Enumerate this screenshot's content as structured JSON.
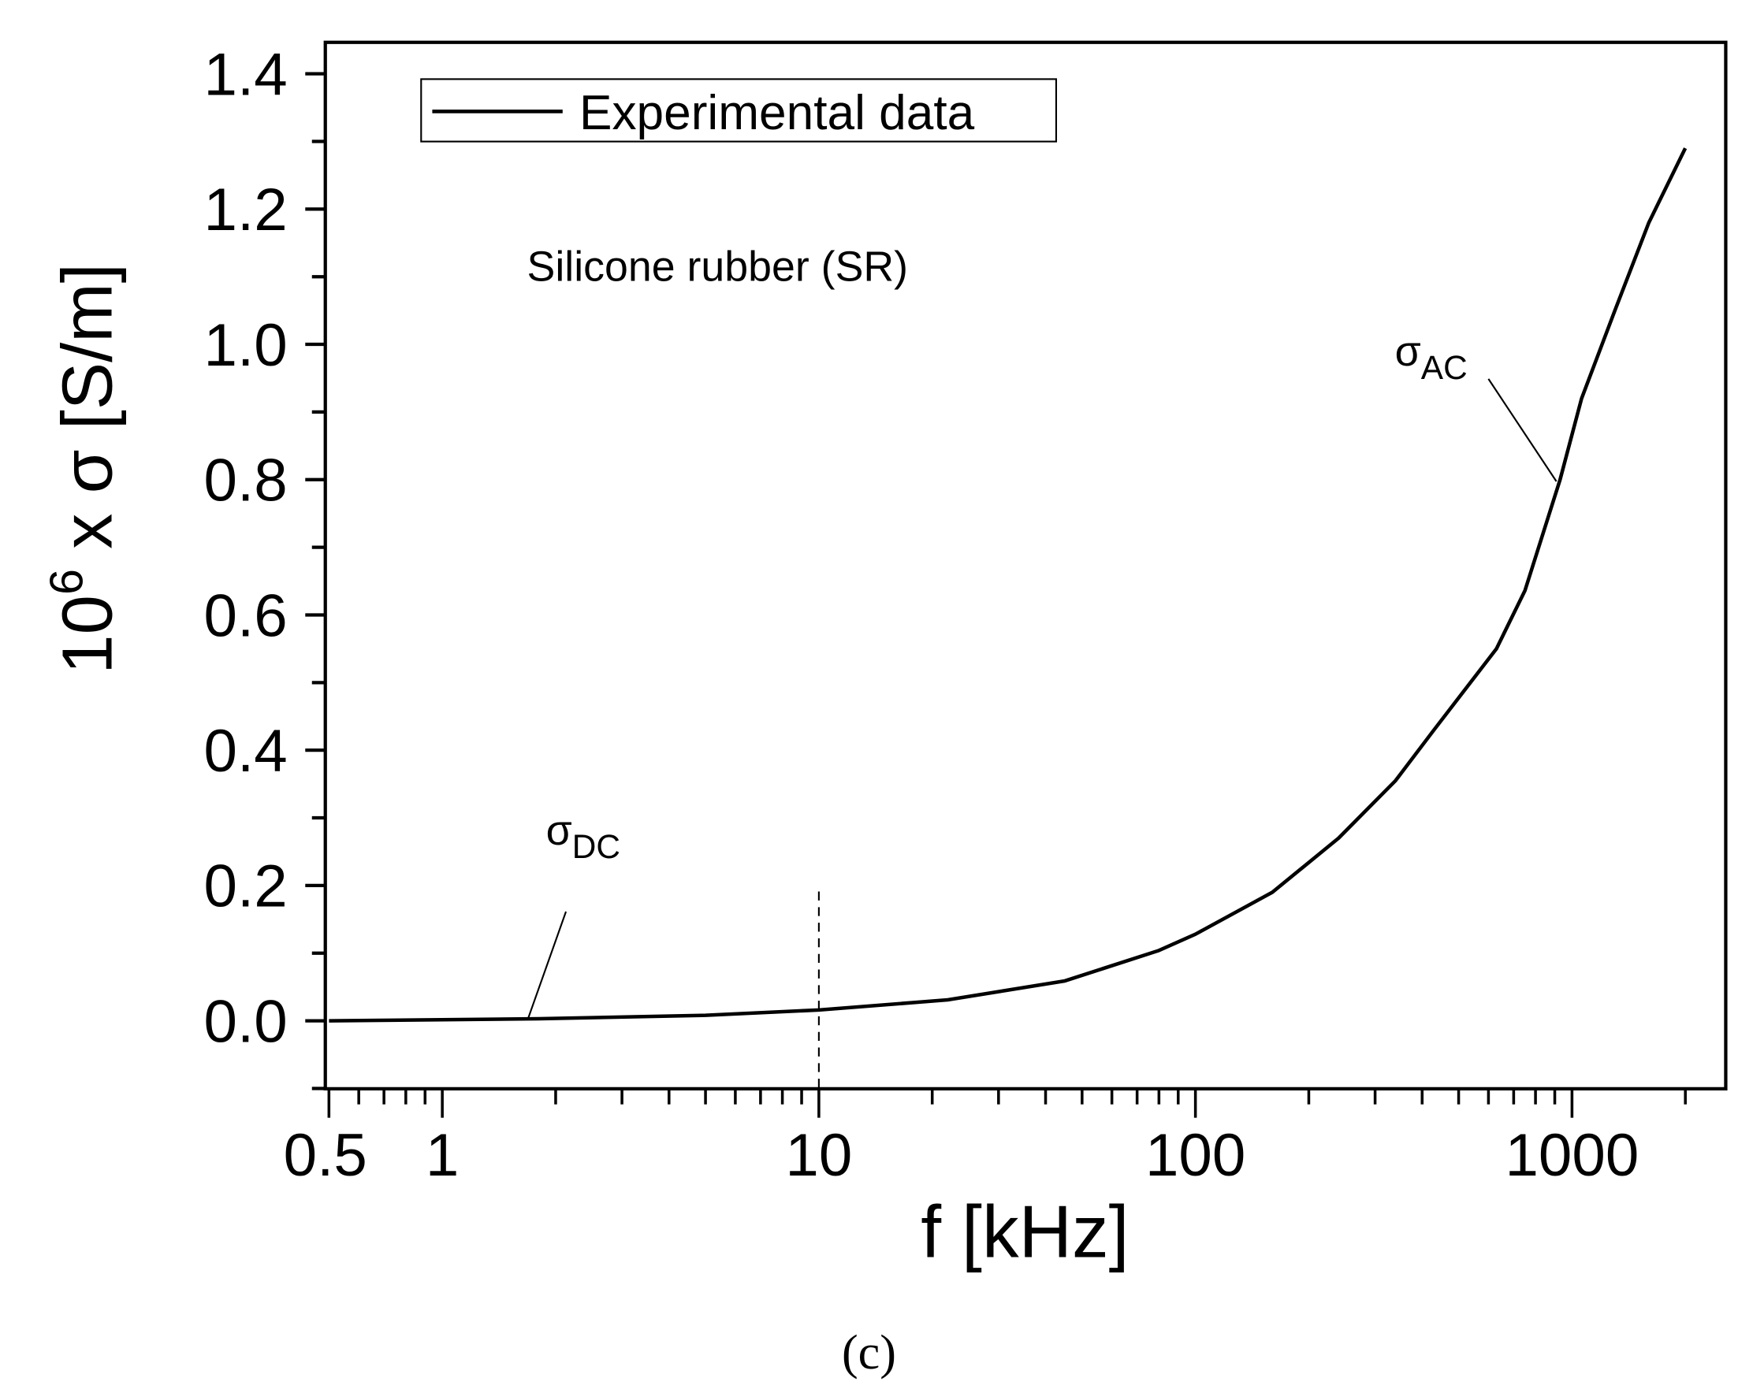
{
  "panel_label": "(c)",
  "annotation_material": "Silicone rubber (SR)",
  "legend": {
    "entries": [
      {
        "label": "Experimental data",
        "style": "solid",
        "color": "#000000"
      }
    ]
  },
  "annotations": {
    "sigma_dc": {
      "symbol": "σ",
      "sub": "DC"
    },
    "sigma_ac": {
      "symbol": "σ",
      "sub": "AC"
    }
  },
  "axes": {
    "xlabel": "f [kHz]",
    "ylabel_prefix": "10",
    "ylabel_exp": "6",
    "ylabel_suffix": " x σ [S/m]",
    "xticks": [
      "0.5",
      "1",
      "10",
      "100",
      "1000"
    ],
    "yticks": [
      "0.0",
      "0.2",
      "0.4",
      "0.6",
      "0.8",
      "1.0",
      "1.2",
      "1.4"
    ]
  },
  "chart_data": {
    "type": "line",
    "title": "",
    "xlabel": "f [kHz]",
    "ylabel": "10^6 x σ [S/m]",
    "xscale": "log",
    "xlim": [
      0.5,
      2500
    ],
    "ylim": [
      -0.2,
      1.45
    ],
    "grid": false,
    "legend_position": "upper left",
    "xticks": [
      0.5,
      1,
      10,
      100,
      1000
    ],
    "yticks": [
      0.0,
      0.2,
      0.4,
      0.6,
      0.8,
      1.0,
      1.2,
      1.4
    ],
    "annotations": [
      {
        "text": "Silicone rubber (SR)",
        "x": 3,
        "y": 1.12
      },
      {
        "text": "σDC",
        "x": 2.0,
        "y": 0.26,
        "points_to": [
          1.8,
          0.003
        ]
      },
      {
        "text": "σAC",
        "x": 400,
        "y": 0.97,
        "points_to": [
          900,
          0.8
        ]
      },
      {
        "text": "dashed vertical line",
        "x": 10,
        "y_range": [
          0.0,
          0.19
        ]
      }
    ],
    "series": [
      {
        "name": "Experimental data",
        "x": [
          0.5,
          1.8,
          5,
          10,
          22,
          45,
          80,
          100,
          160,
          240,
          340,
          430,
          630,
          750,
          930,
          1060,
          1300,
          1600,
          2000
        ],
        "y": [
          0.0,
          0.003,
          0.008,
          0.016,
          0.031,
          0.059,
          0.104,
          0.128,
          0.19,
          0.27,
          0.355,
          0.43,
          0.55,
          0.636,
          0.8,
          0.92,
          1.05,
          1.18,
          1.29
        ]
      }
    ]
  }
}
